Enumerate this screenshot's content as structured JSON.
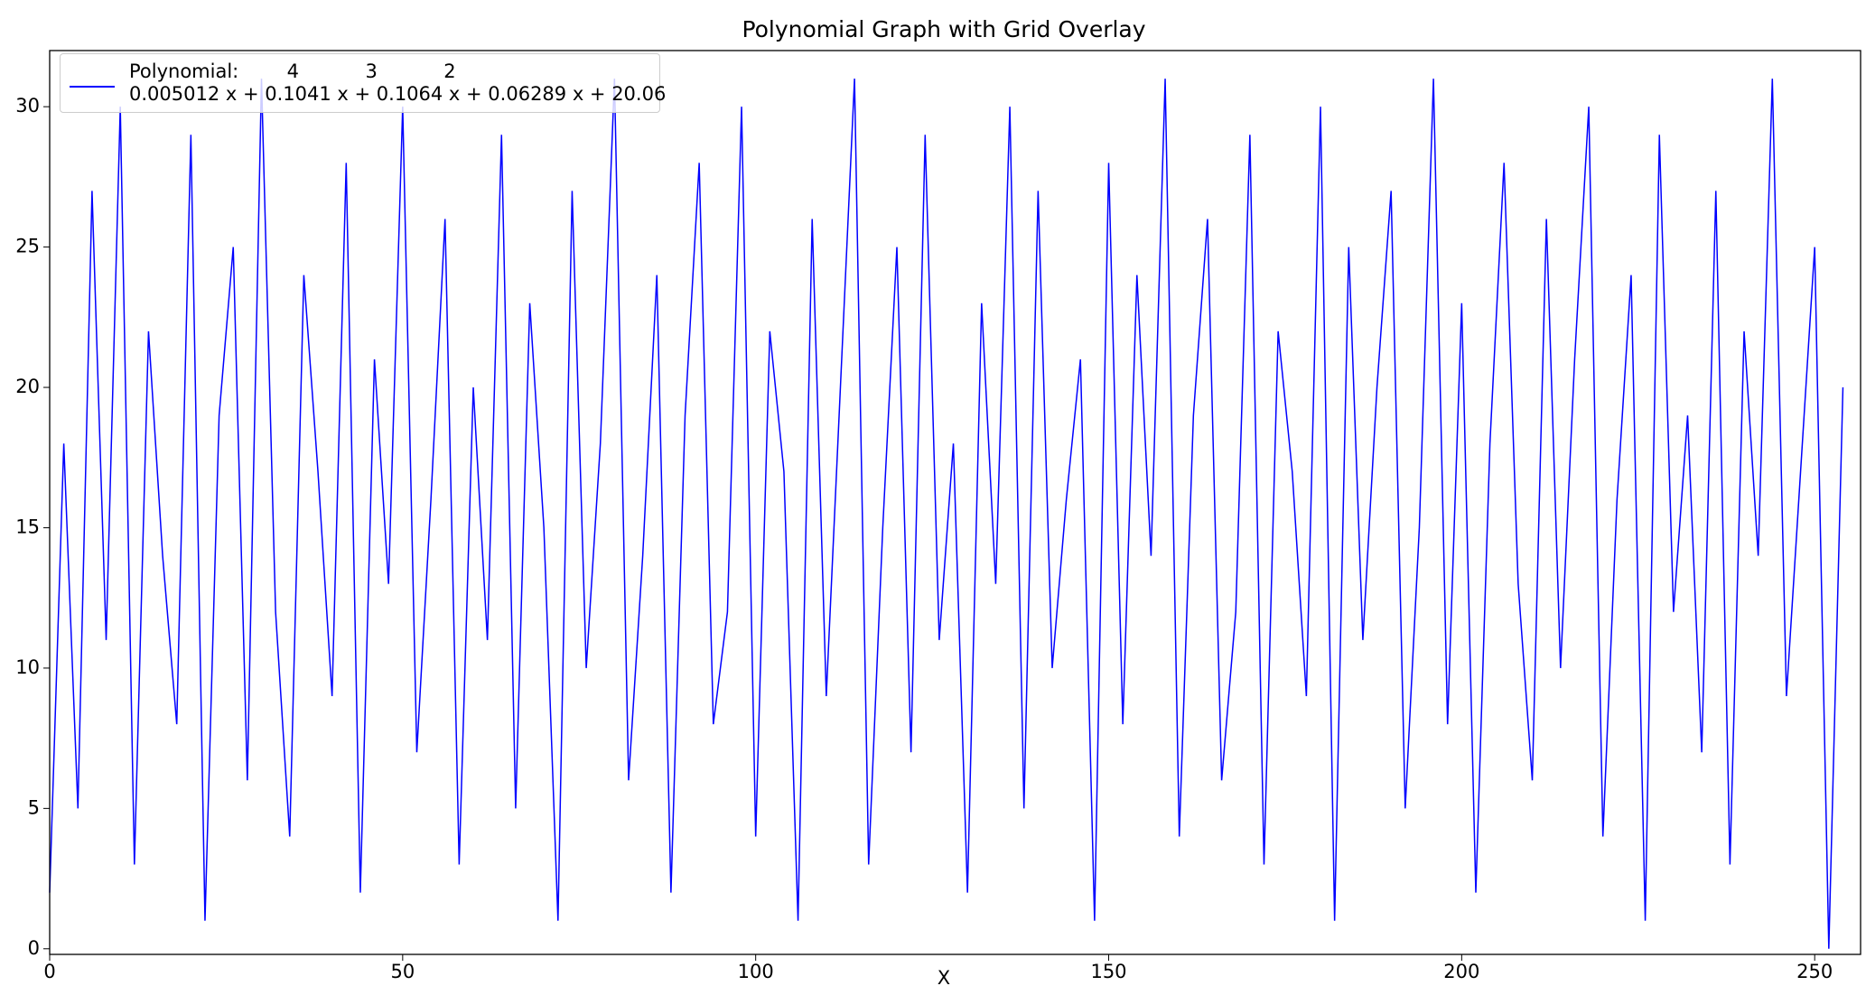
{
  "chart_data": {
    "type": "line",
    "title": "Polynomial Graph with Grid Overlay",
    "x_label": "X",
    "x": [
      0,
      2,
      4,
      6,
      8,
      10,
      12,
      14,
      16,
      18,
      20,
      22,
      24,
      26,
      28,
      30,
      32,
      34,
      36,
      38,
      40,
      42,
      44,
      46,
      48,
      50,
      52,
      54,
      56,
      58,
      60,
      62,
      64,
      66,
      68,
      70,
      72,
      74,
      76,
      78,
      80,
      82,
      84,
      86,
      88,
      90,
      92,
      94,
      96,
      98,
      100,
      102,
      104,
      106,
      108,
      110,
      112,
      114,
      116,
      118,
      120,
      122,
      124,
      126,
      128,
      130,
      132,
      134,
      136,
      138,
      140,
      142,
      144,
      146,
      148,
      150,
      152,
      154,
      156,
      158,
      160,
      162,
      164,
      166,
      168,
      170,
      172,
      174,
      176,
      178,
      180,
      182,
      184,
      186,
      188,
      190,
      192,
      194,
      196,
      198,
      200,
      202,
      204,
      206,
      208,
      210,
      212,
      214,
      216,
      218,
      220,
      222,
      224,
      226,
      228,
      230,
      232,
      234,
      236,
      238,
      240,
      242,
      244,
      246,
      248,
      250,
      252,
      254
    ],
    "series": [
      {
        "name": "Polynomial:        4           3           2\n0.005012 x + 0.1041 x + 0.1064 x + 0.06289 x + 20.06",
        "color": "#0000ff",
        "values": [
          2,
          18,
          5,
          27,
          11,
          30,
          3,
          22,
          14,
          8,
          29,
          1,
          19,
          25,
          6,
          31,
          12,
          4,
          24,
          17,
          9,
          28,
          2,
          21,
          13,
          30,
          7,
          16,
          26,
          3,
          20,
          11,
          29,
          5,
          23,
          15,
          1,
          27,
          10,
          18,
          31,
          6,
          14,
          24,
          2,
          19,
          28,
          8,
          12,
          30,
          4,
          22,
          17,
          1,
          26,
          9,
          20,
          31,
          3,
          15,
          25,
          7,
          29,
          11,
          18,
          2,
          23,
          13,
          30,
          5,
          27,
          10,
          16,
          21,
          1,
          28,
          8,
          24,
          14,
          31,
          4,
          19,
          26,
          6,
          12,
          29,
          3,
          22,
          17,
          9,
          30,
          1,
          25,
          11,
          20,
          27,
          5,
          15,
          31,
          8,
          23,
          2,
          18,
          28,
          13,
          6,
          26,
          10,
          21,
          30,
          4,
          16,
          24,
          1,
          29,
          12,
          19,
          7,
          27,
          3,
          22,
          14,
          31,
          9,
          17,
          25,
          0,
          20
        ]
      }
    ],
    "xlim": [
      0,
      256.5
    ],
    "ylim": [
      -0.2,
      32
    ],
    "xticks": [
      0,
      50,
      100,
      150,
      200,
      250
    ],
    "yticks": [
      0,
      5,
      10,
      15,
      20,
      25,
      30
    ],
    "grid": false
  }
}
